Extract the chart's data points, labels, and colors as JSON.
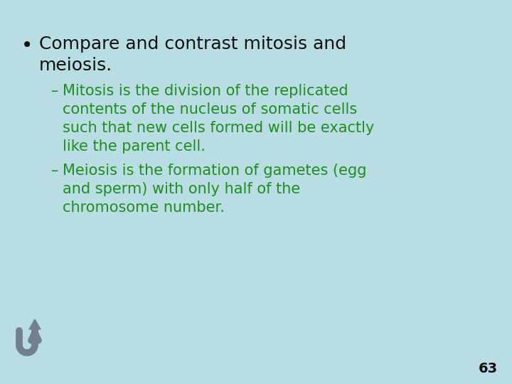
{
  "background_color": "#b8dde3",
  "bullet_color": "#111111",
  "sub_color": "#228B22",
  "page_number": "63",
  "bullet_text_line1": "Compare and contrast mitosis and",
  "bullet_text_line2": "meiosis.",
  "sub1_dash": "–",
  "sub1_line1": "Mitosis is the division of the replicated",
  "sub1_line2": "contents of the nucleus of somatic cells",
  "sub1_line3": "such that new cells formed will be exactly",
  "sub1_line4": "like the parent cell.",
  "sub2_dash": "–",
  "sub2_line1": "Meiosis is the formation of gametes (egg",
  "sub2_line2": "and sperm) with only half of the",
  "sub2_line3": "chromosome number.",
  "font_family": "Comic Sans MS",
  "bullet_fontsize": 18,
  "sub_fontsize": 15,
  "page_fontsize": 14,
  "arrow_color": "#708090"
}
